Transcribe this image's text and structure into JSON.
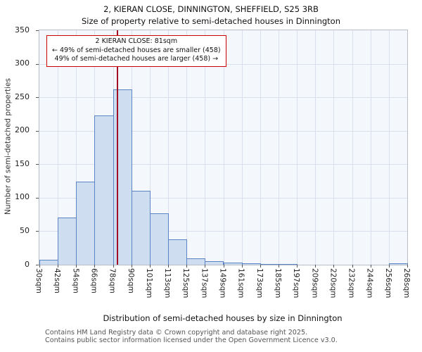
{
  "title": {
    "line1": "2, KIERAN CLOSE, DINNINGTON, SHEFFIELD, S25 3RB",
    "line2": "Size of property relative to semi-detached houses in Dinnington"
  },
  "annotation": {
    "line1": "2 KIERAN CLOSE: 81sqm",
    "line2": "← 49% of semi-detached houses are smaller (458)",
    "line3": "49% of semi-detached houses are larger (458) →"
  },
  "footer": {
    "line1": "Contains HM Land Registry data © Crown copyright and database right 2025.",
    "line2": "Contains public sector information licensed under the Open Government Licence v3.0."
  },
  "chart_data": {
    "type": "bar",
    "title": "2, KIERAN CLOSE, DINNINGTON, SHEFFIELD, S25 3RB",
    "subtitle": "Size of property relative to semi-detached houses in Dinnington",
    "xlabel": "Distribution of semi-detached houses by size in Dinnington",
    "ylabel": "Number of semi-detached properties",
    "bin_edges_sqm": [
      30,
      42,
      54,
      66,
      78,
      90,
      101,
      113,
      125,
      137,
      149,
      161,
      173,
      185,
      197,
      209,
      220,
      232,
      244,
      256,
      268
    ],
    "bin_labels": [
      "30sqm",
      "42sqm",
      "54sqm",
      "66sqm",
      "78sqm",
      "90sqm",
      "101sqm",
      "113sqm",
      "125sqm",
      "137sqm",
      "149sqm",
      "161sqm",
      "173sqm",
      "185sqm",
      "197sqm",
      "209sqm",
      "220sqm",
      "232sqm",
      "244sqm",
      "256sqm",
      "268sqm"
    ],
    "values": [
      7,
      70,
      124,
      223,
      262,
      110,
      77,
      38,
      9,
      5,
      3,
      2,
      1,
      1,
      0,
      0,
      0,
      0,
      0,
      2
    ],
    "ylim": [
      0,
      350
    ],
    "yticks": [
      0,
      50,
      100,
      150,
      200,
      250,
      300,
      350
    ],
    "grid": true,
    "marker": {
      "value_sqm": 81,
      "label": "2 KIERAN CLOSE: 81sqm",
      "smaller_pct": 49,
      "smaller_count": 458,
      "larger_pct": 49,
      "larger_count": 458
    },
    "colors": {
      "bar_fill": "#cfddf1",
      "bar_border": "#5b84c4",
      "grid": "#d9dfec",
      "marker_line": "#a31025",
      "annotation_border": "#cc0000"
    }
  }
}
